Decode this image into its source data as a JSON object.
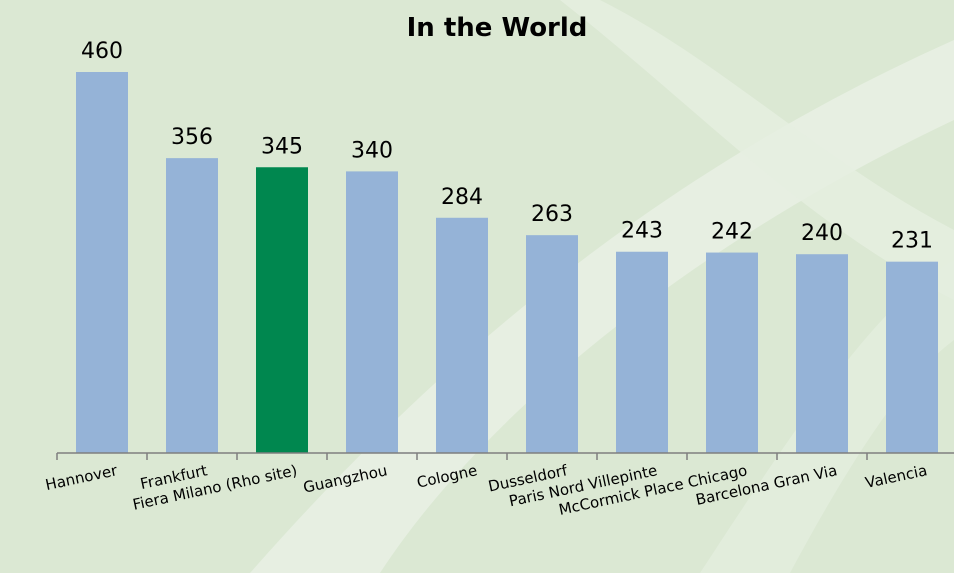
{
  "chart_data": {
    "type": "bar",
    "title": "In the World",
    "xlabel": "",
    "ylabel": "",
    "categories": [
      "Hannover",
      "Frankfurt",
      "Fiera Milano (Rho site)",
      "Guangzhou",
      "Cologne",
      "Dusseldorf",
      "Paris Nord Villepinte",
      "McCormick Place Chicago",
      "Barcelona Gran Via",
      "Valencia"
    ],
    "values": [
      460,
      356,
      345,
      340,
      284,
      263,
      243,
      242,
      240,
      231
    ],
    "data_labels": [
      "460",
      "356",
      "345",
      "340",
      "284",
      "263",
      "243",
      "242",
      "240",
      "231"
    ],
    "highlight_index": 2,
    "ylim": [
      0,
      460
    ],
    "grid": false,
    "legend": "none",
    "colors": {
      "bar": "#95b3d7",
      "highlight": "#00874f",
      "axis": "#7f7f7f",
      "background": "#dbe8d3",
      "swoosh": "#e6efe1"
    }
  }
}
